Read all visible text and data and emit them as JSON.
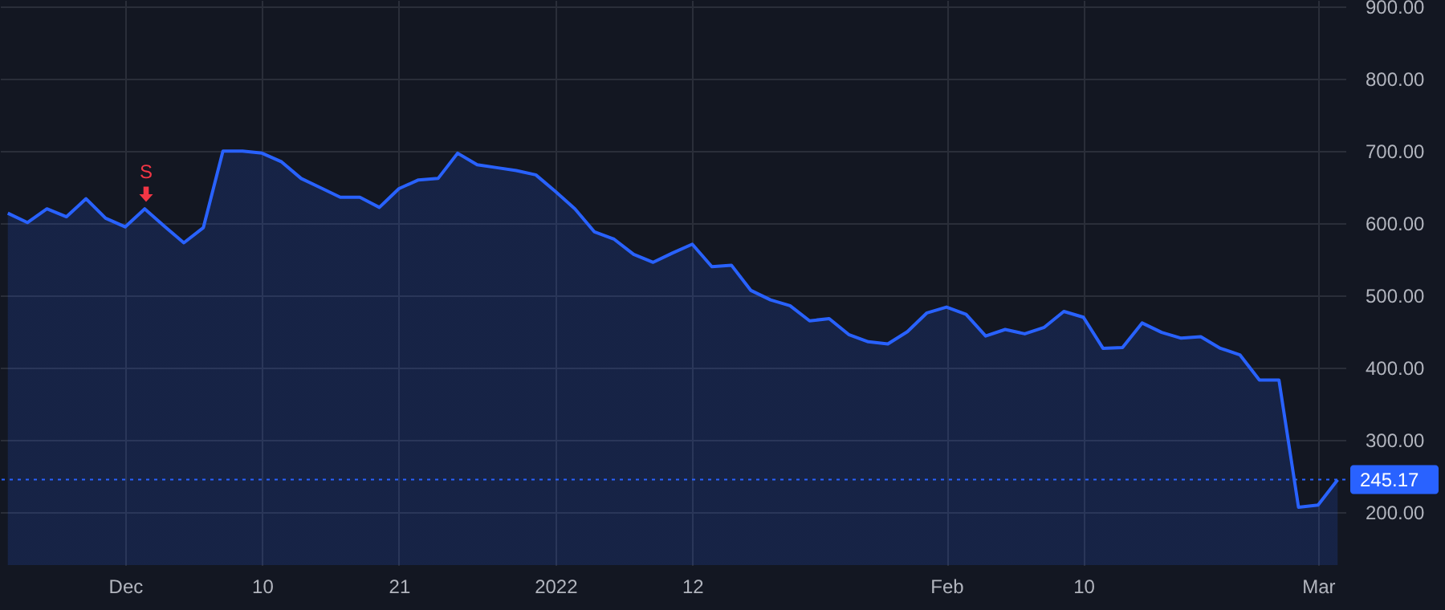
{
  "chart_data": {
    "type": "area",
    "categories": [
      null,
      null,
      null,
      null,
      null,
      null,
      "Dec",
      null,
      null,
      null,
      null,
      null,
      null,
      "10",
      null,
      null,
      null,
      null,
      null,
      null,
      "21",
      null,
      null,
      null,
      null,
      null,
      null,
      null,
      "2022",
      null,
      null,
      null,
      null,
      null,
      null,
      "12",
      null,
      null,
      null,
      null,
      null,
      null,
      null,
      null,
      null,
      null,
      null,
      null,
      "Feb",
      null,
      null,
      null,
      null,
      null,
      null,
      "10",
      null,
      null,
      null,
      null,
      null,
      null,
      null,
      null,
      null,
      null,
      null,
      "Mar",
      null
    ],
    "series": [
      {
        "color": "#2962ff",
        "values": [
          614,
          601,
          620,
          609,
          634,
          607,
          595,
          620,
          596,
          573,
          594,
          700,
          700,
          697,
          685,
          662,
          649,
          636,
          636,
          622,
          648,
          660,
          662,
          697,
          681,
          677,
          673,
          667,
          644,
          620,
          588,
          578,
          557,
          546,
          559,
          571,
          540,
          542,
          507,
          494,
          486,
          465,
          468,
          446,
          436,
          433,
          450,
          476,
          484,
          474,
          444,
          453,
          447,
          456,
          478,
          470,
          427,
          428,
          462,
          449,
          441,
          443,
          427,
          418,
          383,
          383,
          207,
          210,
          245
        ]
      }
    ],
    "ylim": [
      127,
      909
    ],
    "yticks": [
      {
        "value": 200,
        "label": "200.00"
      },
      {
        "value": 300,
        "label": "300.00"
      },
      {
        "value": 400,
        "label": "400.00"
      },
      {
        "value": 500,
        "label": "500.00"
      },
      {
        "value": 600,
        "label": "600.00"
      },
      {
        "value": 700,
        "label": "700.00"
      },
      {
        "value": 800,
        "label": "800.00"
      },
      {
        "value": 900,
        "label": "900.00"
      }
    ],
    "grid": true,
    "ref_lines": [
      {
        "axis": "y",
        "value": 245.17,
        "label": "245.17",
        "color": "#2962ff",
        "line_style": "dotted"
      }
    ],
    "annotations": [
      "S"
    ]
  }
}
